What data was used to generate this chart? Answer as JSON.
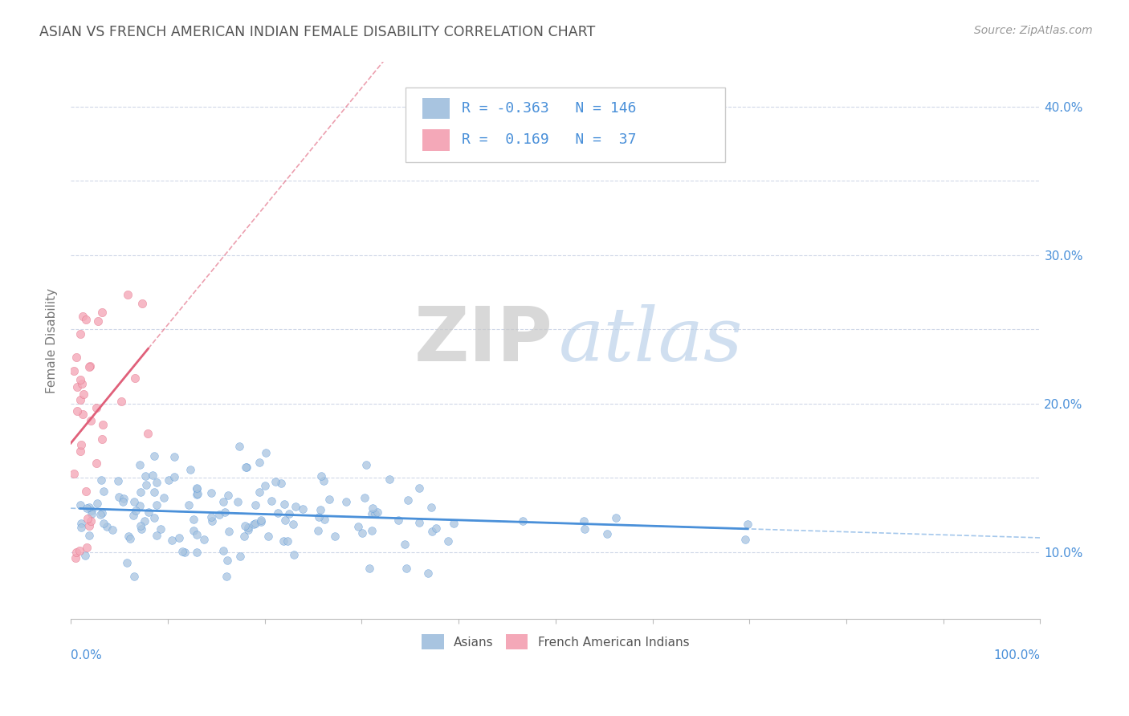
{
  "title": "ASIAN VS FRENCH AMERICAN INDIAN FEMALE DISABILITY CORRELATION CHART",
  "source_text": "Source: ZipAtlas.com",
  "ylabel": "Female Disability",
  "xlim": [
    0.0,
    1.0
  ],
  "ylim": [
    0.055,
    0.43
  ],
  "asian_scatter_color": "#a8c4e0",
  "french_scatter_color": "#f4a8b8",
  "asian_line_color": "#4a90d9",
  "french_line_color": "#e0607a",
  "R_asian": -0.363,
  "N_asian": 146,
  "R_french": 0.169,
  "N_french": 37,
  "legend_label_asian": "Asians",
  "legend_label_french": "French American Indians",
  "watermark_zip": "ZIP",
  "watermark_atlas": "atlas",
  "bg_color": "#ffffff",
  "grid_color": "#d0d8e8",
  "title_color": "#555555",
  "axis_label_color": "#4a90d9",
  "seed_asian": 42,
  "seed_french": 99
}
